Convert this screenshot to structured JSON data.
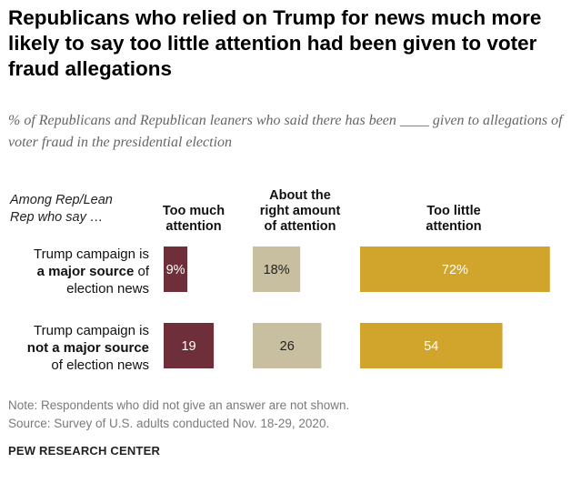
{
  "title": "Republicans who relied on Trump for news much more likely to say too little attention had been given to voter fraud allegations",
  "subtitle": "% of Republicans and Republican leaners who said there has been ____ given to allegations of voter fraud in the presidential election",
  "note": "Note: Respondents who did not give an answer are not shown.",
  "source": "Source: Survey of U.S. adults conducted Nov. 18-29, 2020.",
  "brand": "PEW RESEARCH CENTER",
  "colors": {
    "too_much": "#6e2f3a",
    "about_right": "#c8bfa0",
    "too_little": "#d1a52c"
  },
  "chart_data": {
    "type": "bar",
    "title": "Republicans who relied on Trump for news much more likely to say too little attention had been given to voter fraud allegations",
    "row_header": [
      "Among Rep/Lean",
      "Rep who say …"
    ],
    "categories": [
      {
        "line1": "Trump campaign is",
        "bold": "a major source",
        "after_bold": " of",
        "line3": "election news"
      },
      {
        "line1": "Trump campaign is",
        "bold": "not a major source",
        "after_bold": "",
        "line3": "of election news"
      }
    ],
    "series": [
      {
        "name": "Too much attention",
        "header": [
          "Too much",
          "attention"
        ],
        "values": [
          9,
          19
        ],
        "labels": [
          "9%",
          "19"
        ]
      },
      {
        "name": "About the right amount of attention",
        "header": [
          "About the",
          "right amount",
          "of attention"
        ],
        "values": [
          18,
          26
        ],
        "labels": [
          "18%",
          "26"
        ]
      },
      {
        "name": "Too little attention",
        "header": [
          "Too little",
          "attention"
        ],
        "values": [
          72,
          54
        ],
        "labels": [
          "72%",
          "54"
        ]
      }
    ]
  }
}
